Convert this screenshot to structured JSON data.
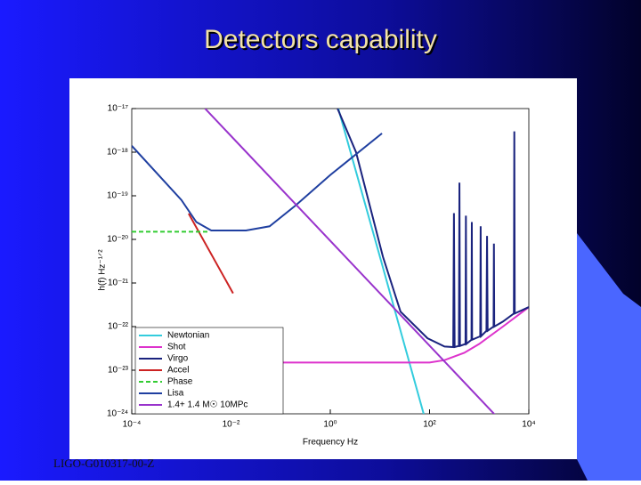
{
  "title": "Detectors capability",
  "footer": "LIGO-G010317-00-Z",
  "chart_data": {
    "type": "line",
    "xlabel": "Frequency Hz",
    "ylabel": "h(f) Hz⁻¹ᐟ²",
    "xscale": "log",
    "yscale": "log",
    "xlim": [
      0.0001,
      10000
    ],
    "ylim": [
      1e-24,
      1e-17
    ],
    "xticks": [
      {
        "value": 0.0001,
        "label": "10⁻⁴"
      },
      {
        "value": 0.01,
        "label": "10⁻²"
      },
      {
        "value": 1,
        "label": "10⁰"
      },
      {
        "value": 100,
        "label": "10²"
      },
      {
        "value": 10000,
        "label": "10⁴"
      }
    ],
    "yticks": [
      {
        "value": 1e-24,
        "label": "10⁻²⁴"
      },
      {
        "value": 1e-23,
        "label": "10⁻²³"
      },
      {
        "value": 1e-22,
        "label": "10⁻²²"
      },
      {
        "value": 1e-21,
        "label": "10⁻²¹"
      },
      {
        "value": 1e-20,
        "label": "10⁻²⁰"
      },
      {
        "value": 1e-19,
        "label": "10⁻¹⁹"
      },
      {
        "value": 1e-18,
        "label": "10⁻¹⁸"
      },
      {
        "value": 1e-17,
        "label": "10⁻¹⁷"
      }
    ],
    "legend": "lower left",
    "series": [
      {
        "name": "Newtonian",
        "color": "#33ccdd",
        "x": [
          1.45,
          10,
          76
        ],
        "values": [
          1e-17,
          4e-21,
          1e-24
        ]
      },
      {
        "name": "Shot",
        "color": "#dd33cc",
        "x": [
          0.1,
          100,
          200,
          500,
          1000,
          3000,
          10000
        ],
        "values": [
          1.5e-23,
          1.5e-23,
          1.7e-23,
          2.5e-23,
          4e-23,
          1e-22,
          2.8e-22
        ]
      },
      {
        "name": "Virgo",
        "color": "#1a237e",
        "x": [
          1.4,
          3.3,
          11.5,
          26,
          91,
          200,
          300,
          310,
          320,
          390,
          400,
          410,
          530,
          540,
          550,
          700,
          710,
          720,
          1050,
          1070,
          1090,
          1400,
          1440,
          1480,
          1950,
          1980,
          2010,
          3000,
          5000,
          5100,
          5200,
          10000
        ],
        "values": [
          1e-17,
          1e-18,
          4e-21,
          2.2e-22,
          5.4e-23,
          3.5e-23,
          3.4e-23,
          4e-20,
          3.4e-23,
          3.6e-23,
          2e-19,
          3.6e-23,
          4e-23,
          3.5e-20,
          4e-23,
          5e-23,
          2.5e-20,
          5e-23,
          6e-23,
          2e-20,
          6e-23,
          8e-23,
          1.2e-20,
          8e-23,
          1e-22,
          8e-21,
          1e-22,
          1.3e-22,
          2e-22,
          3e-18,
          2e-22,
          2.8e-22
        ]
      },
      {
        "name": "Accel",
        "color": "#cc2222",
        "x": [
          0.0014,
          0.011
        ],
        "values": [
          3.9e-20,
          5.8e-22
        ]
      },
      {
        "name": "Phase",
        "color": "#33cc33",
        "dashed": true,
        "x": [
          0.0001,
          0.0036
        ],
        "values": [
          1.5e-20,
          1.5e-20
        ]
      },
      {
        "name": "Lisa",
        "color": "#1f3fa0",
        "x": [
          0.0001,
          0.001,
          0.002,
          0.004,
          0.02,
          0.06,
          0.2,
          1,
          11
        ],
        "values": [
          1.4e-18,
          8e-20,
          2.5e-20,
          1.6e-20,
          1.6e-20,
          2e-20,
          6e-20,
          3e-19,
          2.7e-18
        ]
      },
      {
        "name": "1.4+ 1.4 M☉ 10MPc",
        "color": "#9933cc",
        "x": [
          0.003,
          2400
        ],
        "values": [
          1e-17,
          8e-25
        ]
      }
    ]
  }
}
